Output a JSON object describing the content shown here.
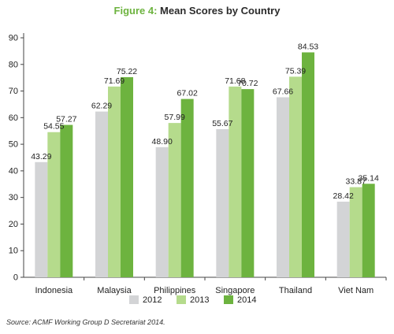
{
  "title": {
    "figure_label": "Figure 4:",
    "text": "Mean Scores by Country"
  },
  "source": "Source: ACMF Working Group D Secretariat 2014.",
  "chart_data": {
    "type": "bar",
    "categories": [
      "Indonesia",
      "Malaysia",
      "Philippines",
      "Singapore",
      "Thailand",
      "Viet Nam"
    ],
    "series": [
      {
        "name": "2012",
        "color": "#d3d4d6",
        "values": [
          43.29,
          62.29,
          48.9,
          55.67,
          67.66,
          28.42
        ]
      },
      {
        "name": "2013",
        "color": "#b5db8c",
        "values": [
          54.55,
          71.69,
          57.99,
          71.68,
          75.39,
          33.87
        ]
      },
      {
        "name": "2014",
        "color": "#6db33f",
        "values": [
          57.27,
          75.22,
          67.02,
          70.72,
          84.53,
          35.14
        ]
      }
    ],
    "value_labels": [
      [
        "43.29",
        "62.29",
        "48.90",
        "55.67",
        "67.66",
        "28.42"
      ],
      [
        "54.55",
        "71.69",
        "57.99",
        "71.68",
        "75.39",
        "33.87"
      ],
      [
        "57.27",
        "75.22",
        "67.02",
        "70.72",
        "84.53",
        "35.14"
      ]
    ],
    "ylim": [
      0,
      90
    ],
    "yticks": [
      "0",
      "10",
      "20",
      "30",
      "40",
      "50",
      "60",
      "70",
      "80",
      "90"
    ],
    "grid": false,
    "legend_position": "bottom"
  }
}
